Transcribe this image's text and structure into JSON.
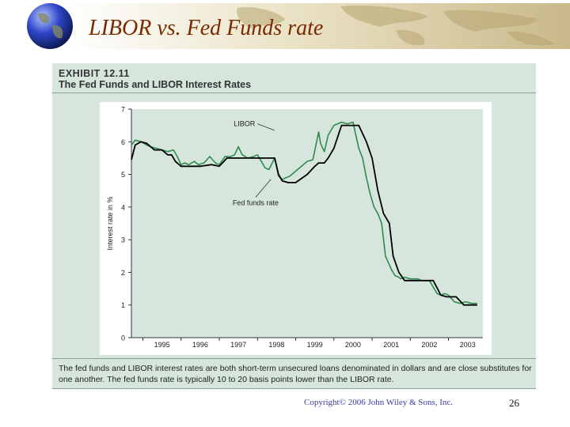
{
  "slide": {
    "title": "LIBOR vs. Fed Funds rate",
    "copyright": "Copyright© 2006 John Wiley & Sons, Inc.",
    "page_number": "26"
  },
  "exhibit": {
    "number": "EXHIBIT 12.11",
    "title": "The Fed Funds and LIBOR Interest Rates",
    "caption": "The fed funds and LIBOR interest rates are both short-term unsecured loans denominated in dollars and are close substitutes for one another. The fed funds rate is typically 10 to 20 basis points lower than the LIBOR rate."
  },
  "colors": {
    "title": "#7a2a00",
    "panel": "#d6e6dd",
    "plot": "#d6e6dd",
    "libor": "#2e8b4e",
    "fedfunds": "#000000"
  },
  "chart_data": {
    "type": "line",
    "title": "",
    "xlabel": "",
    "ylabel": "Interest rate in %",
    "xlim": [
      1994.7,
      2003.9
    ],
    "ylim": [
      0,
      7
    ],
    "yticks": [
      "0",
      "1",
      "2",
      "3",
      "4",
      "5",
      "6",
      "7"
    ],
    "xticks": [
      "1995",
      "1996",
      "1997",
      "1998",
      "1999",
      "2000",
      "2001",
      "2002",
      "2003"
    ],
    "grid": false,
    "annotations": [
      "LIBOR",
      "Fed funds rate"
    ],
    "series": [
      {
        "name": "LIBOR",
        "x": [
          1994.7,
          1994.8,
          1994.95,
          1995.1,
          1995.2,
          1995.35,
          1995.5,
          1995.65,
          1995.8,
          1995.9,
          1996.0,
          1996.1,
          1996.2,
          1996.35,
          1996.45,
          1996.6,
          1996.75,
          1996.9,
          1997.0,
          1997.15,
          1997.3,
          1997.4,
          1997.5,
          1997.6,
          1997.75,
          1997.9,
          1998.0,
          1998.2,
          1998.3,
          1998.45,
          1998.55,
          1998.65,
          1998.75,
          1998.85,
          1999.0,
          1999.15,
          1999.3,
          1999.45,
          1999.6,
          1999.65,
          1999.75,
          1999.85,
          2000.0,
          2000.2,
          2000.35,
          2000.5,
          2000.65,
          2000.75,
          2000.85,
          2000.95,
          2001.05,
          2001.15,
          2001.25,
          2001.35,
          2001.5,
          2001.6,
          2001.7,
          2001.75,
          2001.85,
          2002.0,
          2002.2,
          2002.3,
          2002.5,
          2002.7,
          2002.8,
          2002.9,
          2003.0,
          2003.15,
          2003.3,
          2003.45,
          2003.6,
          2003.75
        ],
        "values": [
          5.9,
          6.05,
          6.0,
          5.9,
          5.85,
          5.8,
          5.75,
          5.7,
          5.75,
          5.55,
          5.3,
          5.35,
          5.3,
          5.4,
          5.3,
          5.35,
          5.55,
          5.35,
          5.3,
          5.55,
          5.55,
          5.6,
          5.85,
          5.6,
          5.5,
          5.55,
          5.6,
          5.2,
          5.15,
          5.5,
          4.95,
          4.85,
          4.9,
          4.95,
          5.1,
          5.25,
          5.4,
          5.45,
          6.3,
          5.95,
          5.7,
          6.2,
          6.5,
          6.6,
          6.55,
          6.6,
          5.8,
          5.5,
          4.9,
          4.4,
          4.0,
          3.8,
          3.5,
          2.5,
          2.1,
          1.9,
          1.85,
          1.8,
          1.85,
          1.8,
          1.8,
          1.75,
          1.75,
          1.35,
          1.3,
          1.35,
          1.3,
          1.1,
          1.05,
          1.1,
          1.05,
          1.05
        ]
      },
      {
        "name": "Fed funds rate",
        "x": [
          1994.7,
          1994.8,
          1994.95,
          1995.1,
          1995.3,
          1995.5,
          1995.65,
          1995.75,
          1995.85,
          1996.0,
          1996.3,
          1996.5,
          1996.8,
          1997.0,
          1997.2,
          1997.5,
          1997.8,
          1998.0,
          1998.3,
          1998.45,
          1998.55,
          1998.65,
          1998.8,
          1999.0,
          1999.3,
          1999.5,
          1999.6,
          1999.75,
          1999.85,
          2000.0,
          2000.2,
          2000.5,
          2000.65,
          2000.85,
          2001.0,
          2001.15,
          2001.3,
          2001.45,
          2001.55,
          2001.7,
          2001.85,
          2002.0,
          2002.4,
          2002.6,
          2002.8,
          2002.95,
          2003.2,
          2003.4,
          2003.5,
          2003.75
        ],
        "values": [
          5.45,
          5.9,
          6.0,
          5.95,
          5.75,
          5.75,
          5.6,
          5.6,
          5.4,
          5.25,
          5.25,
          5.25,
          5.3,
          5.25,
          5.5,
          5.5,
          5.5,
          5.5,
          5.5,
          5.5,
          5.0,
          4.8,
          4.75,
          4.75,
          5.0,
          5.25,
          5.35,
          5.35,
          5.5,
          5.8,
          6.5,
          6.5,
          6.5,
          6.0,
          5.5,
          4.5,
          3.8,
          3.5,
          2.5,
          2.0,
          1.75,
          1.75,
          1.75,
          1.75,
          1.3,
          1.25,
          1.25,
          1.0,
          1.0,
          1.0
        ]
      }
    ]
  }
}
